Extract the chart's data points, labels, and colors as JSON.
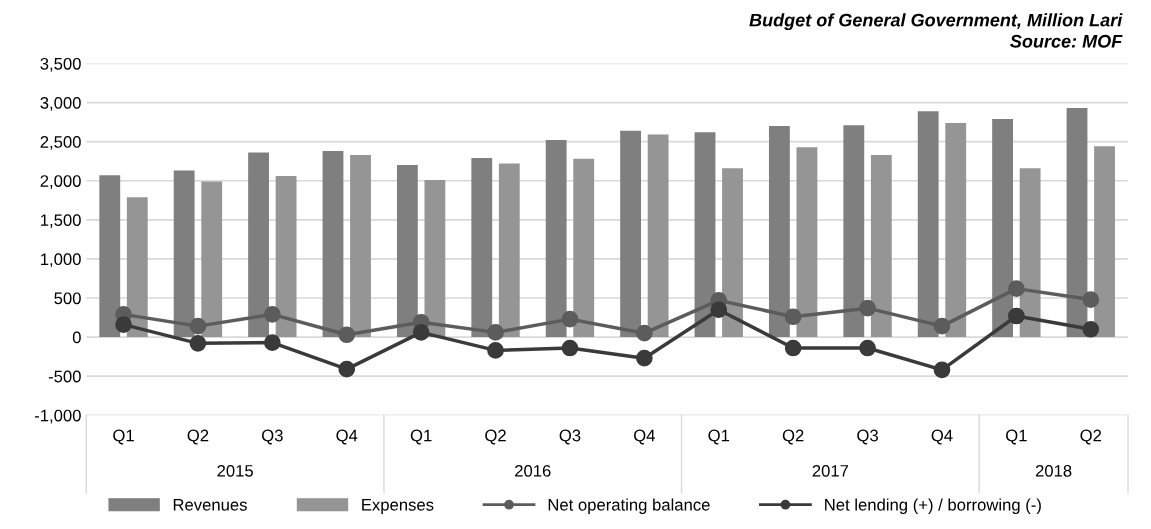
{
  "chart_data": {
    "type": "bar",
    "title": "Budget of General Government, Million Lari",
    "categories": [
      "Q1",
      "Q2",
      "Q3",
      "Q4",
      "Q1",
      "Q2",
      "Q3",
      "Q4",
      "Q1",
      "Q2",
      "Q3",
      "Q4",
      "Q1",
      "Q2"
    ],
    "series": [
      {
        "name": "Revenues",
        "color": "#7f7f7f",
        "values": [
          2070,
          2130,
          2360,
          2380,
          2200,
          2290,
          2520,
          2640,
          2620,
          2700,
          2710,
          2890,
          2790,
          2930
        ]
      },
      {
        "name": "Expenses",
        "color": "#959595",
        "values": [
          1790,
          1990,
          2060,
          2330,
          2010,
          2220,
          2280,
          2590,
          2160,
          2430,
          2330,
          2740,
          2160,
          2440
        ]
      },
      {
        "name": "Net operating balance",
        "type": "line",
        "color": "#5c5c5c",
        "values": [
          290,
          140,
          290,
          30,
          190,
          60,
          230,
          50,
          470,
          260,
          370,
          140,
          620,
          480
        ]
      },
      {
        "name": "Net lending (+) / borrowing (-)",
        "type": "line",
        "color": "#3a3a3a",
        "values": [
          160,
          -80,
          -70,
          -410,
          60,
          -170,
          -140,
          -270,
          350,
          -140,
          -140,
          -420,
          270,
          100
        ]
      }
    ],
    "annotations": [
      "Source: MOF",
      "2015",
      "2016",
      "2017",
      "2018"
    ],
    "ylim": [
      -1000,
      3500
    ],
    "yticks": [
      {
        "value": -1000,
        "label": "-1,000"
      },
      {
        "value": -500,
        "label": "-500"
      },
      0,
      500,
      {
        "value": 1000,
        "label": "1,000"
      },
      {
        "value": 1500,
        "label": "1,500"
      },
      {
        "value": 2000,
        "label": "2,000"
      },
      {
        "value": 2500,
        "label": "2,500"
      },
      {
        "value": 3000,
        "label": "3,000"
      },
      {
        "value": 3500,
        "label": "3,500"
      }
    ],
    "grid": "y",
    "legend": "bottom",
    "marker": "circle"
  }
}
